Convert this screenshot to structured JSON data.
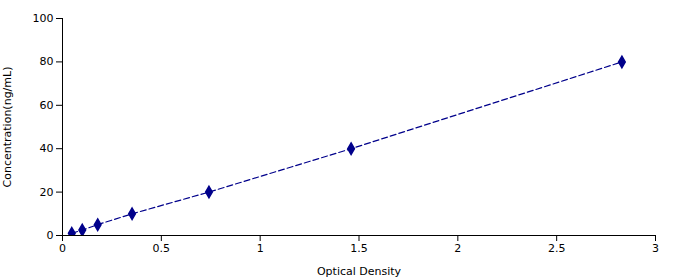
{
  "chart_data": {
    "type": "line",
    "x": [
      0.047,
      0.1,
      0.178,
      0.352,
      0.741,
      1.46,
      2.83
    ],
    "values": [
      1.0,
      2.5,
      5.0,
      10.0,
      20.0,
      40.0,
      80.0
    ],
    "color": "#00008B",
    "marker": "diamond",
    "line_style": "dashed",
    "xlabel": "Optical Density",
    "ylabel": "Concentration(ng/mL)",
    "xlim": [
      0,
      3.0
    ],
    "ylim": [
      0,
      100
    ],
    "xticks": [
      0,
      0.5,
      1,
      1.5,
      2,
      2.5,
      3
    ],
    "yticks": [
      0,
      20,
      40,
      60,
      80,
      100
    ],
    "grid": false
  }
}
